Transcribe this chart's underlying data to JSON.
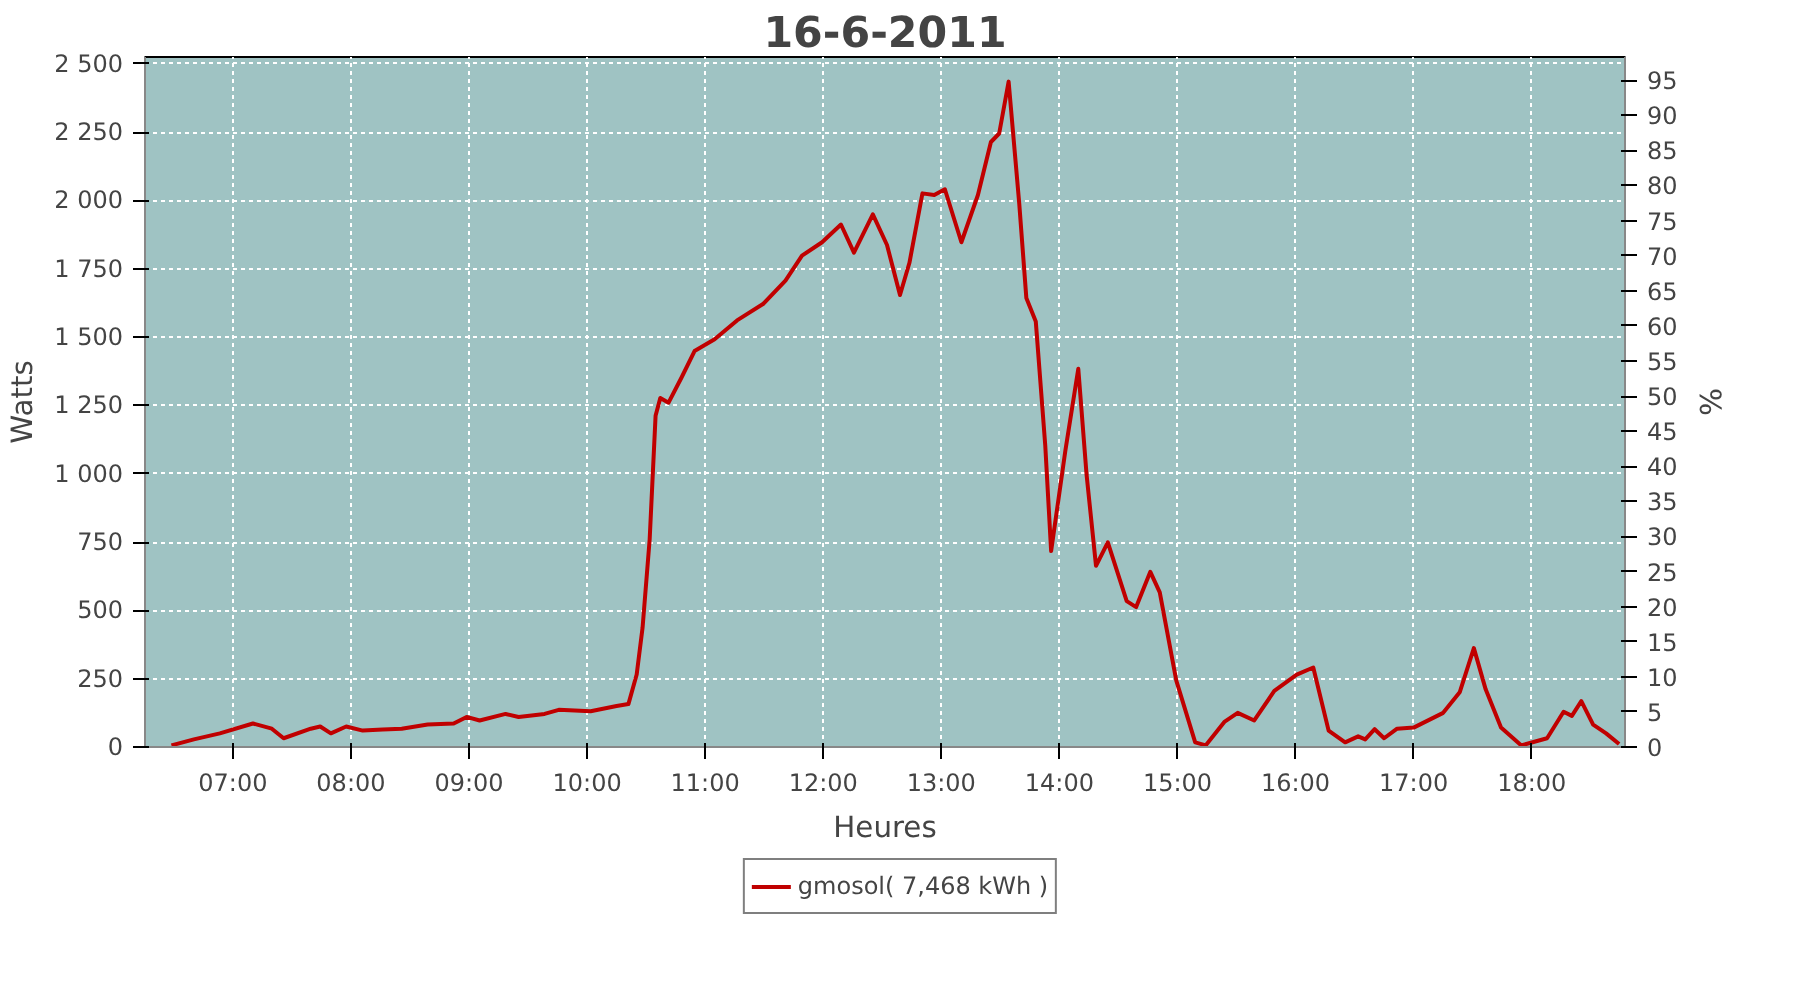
{
  "chart_data": {
    "type": "line",
    "title": "16-6-2011",
    "xlabel": "Heures",
    "ylabel": "Watts",
    "y2label": "%",
    "x": [
      6.48,
      6.67,
      6.89,
      7.17,
      7.33,
      7.43,
      7.66,
      7.74,
      7.83,
      7.96,
      8.1,
      8.27,
      8.43,
      8.65,
      8.87,
      8.98,
      9.09,
      9.31,
      9.42,
      9.64,
      9.76,
      10.03,
      10.25,
      10.35,
      10.42,
      10.47,
      10.53,
      10.58,
      10.62,
      10.69,
      10.8,
      10.91,
      11.08,
      11.27,
      11.49,
      11.68,
      11.82,
      11.99,
      12.15,
      12.26,
      12.42,
      12.54,
      12.65,
      12.73,
      12.84,
      12.94,
      13.03,
      13.17,
      13.31,
      13.42,
      13.49,
      13.57,
      13.66,
      13.72,
      13.8,
      13.88,
      13.93,
      14.05,
      14.16,
      14.23,
      14.31,
      14.41,
      14.57,
      14.65,
      14.77,
      14.85,
      14.99,
      15.15,
      15.24,
      15.4,
      15.51,
      15.65,
      15.82,
      16.01,
      16.15,
      16.28,
      16.42,
      16.53,
      16.59,
      16.67,
      16.75,
      16.86,
      17.0,
      17.25,
      17.39,
      17.51,
      17.61,
      17.74,
      17.91,
      18.13,
      18.27,
      18.34,
      18.42,
      18.52,
      18.63,
      18.74
    ],
    "series": [
      {
        "name": "gmosol( 7,468 kWh )",
        "color": "#c00000",
        "values": [
          6,
          28,
          50,
          86,
          67,
          32,
          67,
          75,
          50,
          75,
          60,
          64,
          67,
          82,
          86,
          110,
          97,
          121,
          110,
          121,
          136,
          131,
          150,
          157,
          265,
          437,
          760,
          1212,
          1277,
          1260,
          1352,
          1449,
          1492,
          1561,
          1621,
          1707,
          1798,
          1847,
          1912,
          1809,
          1949,
          1837,
          1654,
          1772,
          2026,
          2020,
          2041,
          1847,
          2020,
          2214,
          2245,
          2435,
          1988,
          1643,
          1557,
          1105,
          717,
          1083,
          1384,
          997,
          663,
          749,
          534,
          512,
          641,
          566,
          243,
          17,
          6,
          93,
          125,
          97,
          205,
          265,
          291,
          60,
          17,
          39,
          28,
          65,
          32,
          67,
          71,
          125,
          200,
          362,
          211,
          71,
          6,
          32,
          129,
          114,
          168,
          82,
          50,
          11
        ]
      }
    ],
    "xlim": [
      6.256,
      18.79
    ],
    "xticks": [
      {
        "value": 7,
        "label": "07:00"
      },
      {
        "value": 8,
        "label": "08:00"
      },
      {
        "value": 9,
        "label": "09:00"
      },
      {
        "value": 10,
        "label": "10:00"
      },
      {
        "value": 11,
        "label": "11:00"
      },
      {
        "value": 12,
        "label": "12:00"
      },
      {
        "value": 13,
        "label": "13:00"
      },
      {
        "value": 14,
        "label": "14:00"
      },
      {
        "value": 15,
        "label": "15:00"
      },
      {
        "value": 16,
        "label": "16:00"
      },
      {
        "value": 17,
        "label": "17:00"
      },
      {
        "value": 18,
        "label": "18:00"
      }
    ],
    "ylim": [
      0,
      2525
    ],
    "yticks": [
      0,
      250,
      500,
      750,
      {
        "value": 1000,
        "label": "1 000"
      },
      {
        "value": 1250,
        "label": "1 250"
      },
      {
        "value": 1500,
        "label": "1 500"
      },
      {
        "value": 1750,
        "label": "1 750"
      },
      {
        "value": 2000,
        "label": "2 000"
      },
      {
        "value": 2250,
        "label": "2 250"
      },
      {
        "value": 2500,
        "label": "2 500"
      }
    ],
    "y2lim": [
      0,
      98.3
    ],
    "y2ticks": [
      0,
      5,
      10,
      15,
      20,
      25,
      30,
      35,
      40,
      45,
      50,
      55,
      60,
      65,
      70,
      75,
      80,
      85,
      90,
      95
    ],
    "grid": true,
    "legend": "bottom",
    "marker": "none",
    "line_style": "solid"
  }
}
